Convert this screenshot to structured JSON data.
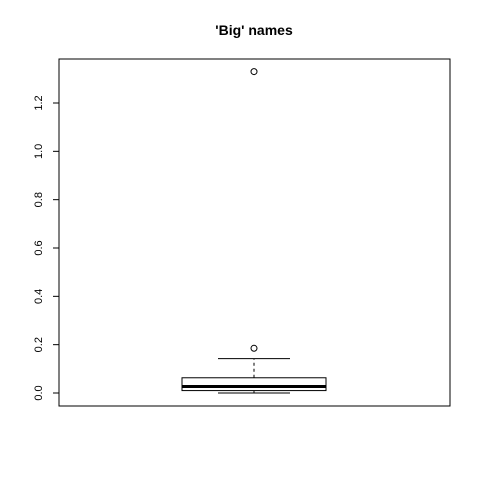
{
  "chart_data": {
    "type": "box",
    "title": "'Big' names",
    "xlabel": "",
    "ylabel": "",
    "ylim": [
      -0.05,
      1.38
    ],
    "y_ticks": [
      0.0,
      0.2,
      0.4,
      0.6,
      0.8,
      1.0,
      1.2
    ],
    "y_tick_labels": [
      "0.0",
      "0.2",
      "0.4",
      "0.6",
      "0.8",
      "1.0",
      "1.2"
    ],
    "box": {
      "min": 0.0,
      "q1": 0.01,
      "median": 0.027,
      "q3": 0.063,
      "whisker_high": 0.142,
      "whisker_low": 0.0
    },
    "outliers": [
      0.185,
      1.33
    ],
    "grid": false,
    "legend": "none"
  }
}
